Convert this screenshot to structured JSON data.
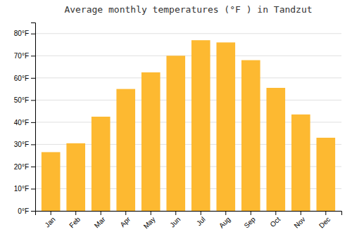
{
  "chart_data": {
    "type": "bar",
    "title": "Average monthly temperatures (°F ) in Tandzut",
    "categories": [
      "Jan",
      "Feb",
      "Mar",
      "Apr",
      "May",
      "Jun",
      "Jul",
      "Aug",
      "Sep",
      "Oct",
      "Nov",
      "Dec"
    ],
    "values": [
      26.5,
      30.5,
      42.5,
      55.0,
      62.5,
      70.0,
      77.0,
      76.0,
      68.0,
      55.5,
      43.5,
      33.0
    ],
    "color": "#FDB931",
    "ylim": [
      0,
      85
    ],
    "yticks": [
      {
        "value": 0,
        "label": "0°F"
      },
      {
        "value": 10,
        "label": "10°F"
      },
      {
        "value": 20,
        "label": "20°F"
      },
      {
        "value": 30,
        "label": "30°F"
      },
      {
        "value": 40,
        "label": "40°F"
      },
      {
        "value": 50,
        "label": "50°F"
      },
      {
        "value": 60,
        "label": "60°F"
      },
      {
        "value": 70,
        "label": "70°F"
      },
      {
        "value": 80,
        "label": "80°F"
      }
    ],
    "grid": true
  }
}
